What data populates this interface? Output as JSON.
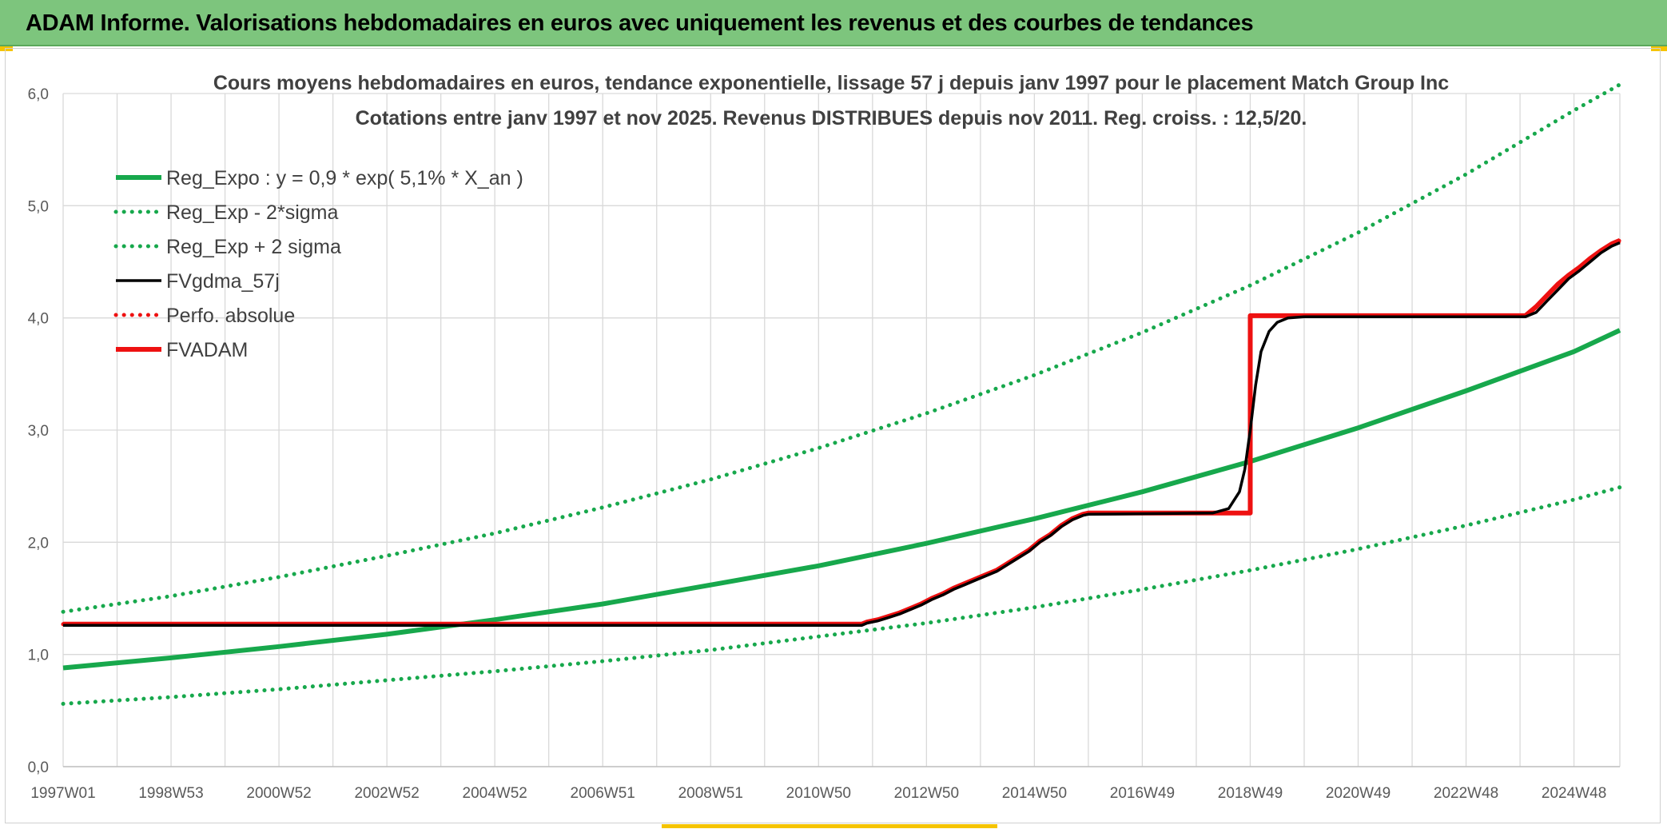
{
  "banner": {
    "title": "ADAM Informe. Valorisations hebdomadaires en euros avec uniquement les revenus et des courbes de tendances"
  },
  "colors": {
    "green": "#17a84c",
    "black": "#000000",
    "red": "#ee1111",
    "banner": "#7dc57d",
    "grid": "#d9d9d9",
    "corner": "#f5c400"
  },
  "chart_data": {
    "type": "line",
    "title": "Cours moyens hebdomadaires en euros, tendance exponentielle, lissage 57 j depuis janv 1997 pour le placement Match Group Inc",
    "subtitle": "Cotations entre janv 1997 et nov 2025. Revenus DISTRIBUES depuis nov 2011. Reg. croiss. : 12,5/20.",
    "xlabel": "",
    "ylabel": "",
    "ylim": [
      0,
      6
    ],
    "y_ticks": [
      "0,0",
      "1,0",
      "2,0",
      "3,0",
      "4,0",
      "5,0",
      "6,0"
    ],
    "x_range": [
      1997.0,
      2025.85
    ],
    "x_ticks": [
      {
        "label": "1997W01",
        "x": 1997.0
      },
      {
        "label": "1998W53",
        "x": 1999.0
      },
      {
        "label": "2000W52",
        "x": 2001.0
      },
      {
        "label": "2002W52",
        "x": 2003.0
      },
      {
        "label": "2004W52",
        "x": 2005.0
      },
      {
        "label": "2006W51",
        "x": 2007.0
      },
      {
        "label": "2008W51",
        "x": 2009.0
      },
      {
        "label": "2010W50",
        "x": 2011.0
      },
      {
        "label": "2012W50",
        "x": 2013.0
      },
      {
        "label": "2014W50",
        "x": 2015.0
      },
      {
        "label": "2016W49",
        "x": 2017.0
      },
      {
        "label": "2018W49",
        "x": 2019.0
      },
      {
        "label": "2020W49",
        "x": 2021.0
      },
      {
        "label": "2022W48",
        "x": 2023.0
      },
      {
        "label": "2024W48",
        "x": 2025.0
      }
    ],
    "grid": true,
    "legend_position": "top-left",
    "series": [
      {
        "name": "Reg_Expo : y = 0,9 * exp( 5,1% *  X_an )",
        "color": "#17a84c",
        "style": "solid",
        "x": [
          1997.0,
          1999.0,
          2001.0,
          2003.0,
          2005.0,
          2007.0,
          2009.0,
          2011.0,
          2013.0,
          2015.0,
          2017.0,
          2019.0,
          2021.0,
          2023.0,
          2025.0,
          2025.85
        ],
        "values": [
          0.88,
          0.97,
          1.07,
          1.18,
          1.31,
          1.45,
          1.62,
          1.79,
          1.99,
          2.21,
          2.45,
          2.72,
          3.02,
          3.35,
          3.7,
          3.89
        ]
      },
      {
        "name": "Reg_Exp - 2*sigma",
        "color": "#17a84c",
        "style": "dotted",
        "x": [
          1997.0,
          1999.0,
          2001.0,
          2003.0,
          2005.0,
          2007.0,
          2009.0,
          2011.0,
          2013.0,
          2015.0,
          2017.0,
          2019.0,
          2021.0,
          2023.0,
          2025.0,
          2025.85
        ],
        "values": [
          0.56,
          0.62,
          0.69,
          0.77,
          0.85,
          0.94,
          1.04,
          1.16,
          1.28,
          1.42,
          1.58,
          1.75,
          1.94,
          2.15,
          2.38,
          2.49
        ]
      },
      {
        "name": "Reg_Exp + 2 sigma",
        "color": "#17a84c",
        "style": "dotted",
        "x": [
          1997.0,
          1999.0,
          2001.0,
          2003.0,
          2005.0,
          2007.0,
          2009.0,
          2011.0,
          2013.0,
          2015.0,
          2017.0,
          2019.0,
          2021.0,
          2023.0,
          2025.0,
          2025.85
        ],
        "values": [
          1.38,
          1.52,
          1.69,
          1.88,
          2.08,
          2.31,
          2.56,
          2.84,
          3.15,
          3.49,
          3.87,
          4.29,
          4.76,
          5.28,
          5.85,
          6.08
        ]
      },
      {
        "name": "FVgdma_57j",
        "color": "#000000",
        "style": "solid",
        "x": [
          1997.0,
          2011.8,
          2011.9,
          2012.1,
          2012.3,
          2012.5,
          2012.7,
          2012.9,
          2013.1,
          2013.3,
          2013.5,
          2013.7,
          2013.9,
          2014.1,
          2014.3,
          2014.5,
          2014.7,
          2014.9,
          2015.1,
          2015.3,
          2015.5,
          2015.7,
          2015.9,
          2016.0,
          2018.3,
          2018.6,
          2018.8,
          2018.9,
          2019.0,
          2019.1,
          2019.2,
          2019.35,
          2019.5,
          2019.7,
          2020.0,
          2024.1,
          2024.3,
          2024.5,
          2024.7,
          2024.9,
          2025.1,
          2025.3,
          2025.5,
          2025.7,
          2025.85
        ],
        "values": [
          1.26,
          1.26,
          1.28,
          1.3,
          1.33,
          1.36,
          1.4,
          1.44,
          1.49,
          1.53,
          1.58,
          1.62,
          1.66,
          1.7,
          1.74,
          1.8,
          1.86,
          1.92,
          2.0,
          2.06,
          2.14,
          2.2,
          2.24,
          2.25,
          2.26,
          2.3,
          2.45,
          2.65,
          3.0,
          3.4,
          3.7,
          3.88,
          3.96,
          4.0,
          4.01,
          4.01,
          4.05,
          4.15,
          4.25,
          4.35,
          4.42,
          4.5,
          4.58,
          4.64,
          4.67
        ]
      },
      {
        "name": "Perfo. absolue",
        "color": "#ee1111",
        "style": "dotted",
        "x": [
          1997.0,
          2011.8,
          2011.9,
          2012.1,
          2012.3,
          2012.5,
          2012.7,
          2012.9,
          2013.1,
          2013.3,
          2013.5,
          2013.7,
          2013.9,
          2014.1,
          2014.3,
          2014.5,
          2014.7,
          2014.9,
          2015.1,
          2015.3,
          2015.5,
          2015.7,
          2015.9,
          2016.0,
          2019.0,
          2019.0,
          2024.1,
          2024.3,
          2024.5,
          2024.7,
          2024.9,
          2025.1,
          2025.3,
          2025.5,
          2025.7,
          2025.85
        ],
        "values": [
          1.27,
          1.27,
          1.29,
          1.31,
          1.34,
          1.37,
          1.41,
          1.45,
          1.5,
          1.54,
          1.59,
          1.63,
          1.67,
          1.71,
          1.75,
          1.81,
          1.87,
          1.93,
          2.01,
          2.07,
          2.15,
          2.21,
          2.25,
          2.26,
          2.26,
          4.02,
          4.02,
          4.1,
          4.2,
          4.3,
          4.38,
          4.45,
          4.53,
          4.6,
          4.66,
          4.69
        ]
      },
      {
        "name": "FVADAM",
        "color": "#ee1111",
        "style": "solid",
        "x": [
          1997.0,
          2011.8,
          2011.9,
          2012.1,
          2012.3,
          2012.5,
          2012.7,
          2012.9,
          2013.1,
          2013.3,
          2013.5,
          2013.7,
          2013.9,
          2014.1,
          2014.3,
          2014.5,
          2014.7,
          2014.9,
          2015.1,
          2015.3,
          2015.5,
          2015.7,
          2015.9,
          2016.0,
          2019.0,
          2019.0,
          2024.1,
          2024.3,
          2024.5,
          2024.7,
          2024.9,
          2025.1,
          2025.3,
          2025.5,
          2025.7,
          2025.85
        ],
        "values": [
          1.27,
          1.27,
          1.29,
          1.31,
          1.34,
          1.37,
          1.41,
          1.45,
          1.5,
          1.54,
          1.59,
          1.63,
          1.67,
          1.71,
          1.75,
          1.81,
          1.87,
          1.93,
          2.01,
          2.07,
          2.15,
          2.21,
          2.25,
          2.26,
          2.26,
          4.02,
          4.02,
          4.1,
          4.2,
          4.3,
          4.38,
          4.45,
          4.53,
          4.6,
          4.66,
          4.69
        ]
      }
    ]
  }
}
